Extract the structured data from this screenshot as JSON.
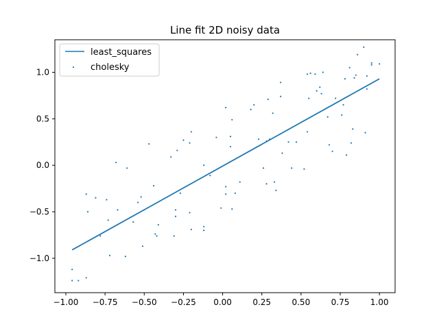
{
  "chart_data": {
    "type": "scatter",
    "title": "Line fit 2D noisy data",
    "xlabel": "",
    "ylabel": "",
    "xlim": [
      -1.07,
      1.1
    ],
    "ylim": [
      -1.37,
      1.35
    ],
    "x_ticks": [
      -1.0,
      -0.75,
      -0.5,
      -0.25,
      0.0,
      0.25,
      0.5,
      0.75,
      1.0
    ],
    "x_tick_labels": [
      "−1.00",
      "−0.75",
      "−0.50",
      "−0.25",
      "0.00",
      "0.25",
      "0.50",
      "0.75",
      "1.00"
    ],
    "y_ticks": [
      -1.0,
      -0.5,
      0.0,
      0.5,
      1.0
    ],
    "y_tick_labels": [
      "−1.0",
      "−0.5",
      "0.0",
      "0.5",
      "1.0"
    ],
    "grid": false,
    "legend_position": "upper-left",
    "legend": [
      "least_squares",
      "cholesky"
    ],
    "series": [
      {
        "name": "least_squares",
        "kind": "line",
        "color": "#1f77b4",
        "x": [
          -0.96,
          1.0
        ],
        "y": [
          -0.91,
          0.93
        ]
      },
      {
        "name": "cholesky",
        "kind": "scatter",
        "color": "#1f77b4",
        "points": [
          [
            -0.96,
            -1.24
          ],
          [
            -0.96,
            -1.12
          ],
          [
            -0.92,
            -1.24
          ],
          [
            -0.87,
            -1.21
          ],
          [
            -0.87,
            -0.31
          ],
          [
            -0.86,
            -0.5
          ],
          [
            -0.81,
            -0.35
          ],
          [
            -0.78,
            -0.76
          ],
          [
            -0.74,
            -0.37
          ],
          [
            -0.73,
            -0.59
          ],
          [
            -0.72,
            -0.97
          ],
          [
            -0.68,
            0.03
          ],
          [
            -0.67,
            -0.48
          ],
          [
            -0.62,
            -0.98
          ],
          [
            -0.61,
            -0.03
          ],
          [
            -0.57,
            -0.61
          ],
          [
            -0.54,
            -0.4
          ],
          [
            -0.52,
            -0.34
          ],
          [
            -0.51,
            -0.87
          ],
          [
            -0.47,
            0.23
          ],
          [
            -0.44,
            -0.22
          ],
          [
            -0.43,
            -0.74
          ],
          [
            -0.42,
            -0.76
          ],
          [
            -0.41,
            -0.64
          ],
          [
            -0.33,
            0.09
          ],
          [
            -0.31,
            -0.76
          ],
          [
            -0.3,
            -0.48
          ],
          [
            -0.3,
            -0.55
          ],
          [
            -0.29,
            0.16
          ],
          [
            -0.27,
            -0.3
          ],
          [
            -0.25,
            0.27
          ],
          [
            -0.21,
            -0.51
          ],
          [
            -0.2,
            0.36
          ],
          [
            -0.21,
            0.24
          ],
          [
            -0.2,
            -0.69
          ],
          [
            -0.12,
            0.0
          ],
          [
            -0.12,
            -0.66
          ],
          [
            -0.12,
            -0.7
          ],
          [
            -0.08,
            -0.11
          ],
          [
            -0.04,
            0.3
          ],
          [
            -0.01,
            -0.46
          ],
          [
            0.02,
            -0.23
          ],
          [
            0.02,
            0.62
          ],
          [
            0.02,
            -0.31
          ],
          [
            0.05,
            0.2
          ],
          [
            0.05,
            0.31
          ],
          [
            0.06,
            -0.47
          ],
          [
            0.06,
            0.49
          ],
          [
            0.08,
            -0.3
          ],
          [
            0.11,
            -0.18
          ],
          [
            0.18,
            0.6
          ],
          [
            0.2,
            0.65
          ],
          [
            0.23,
            0.28
          ],
          [
            0.26,
            -0.03
          ],
          [
            0.28,
            0.26
          ],
          [
            0.28,
            -0.2
          ],
          [
            0.29,
            0.71
          ],
          [
            0.3,
            0.28
          ],
          [
            0.32,
            0.56
          ],
          [
            0.33,
            -0.18
          ],
          [
            0.34,
            -0.27
          ],
          [
            0.37,
            0.74
          ],
          [
            0.37,
            0.89
          ],
          [
            0.38,
            0.13
          ],
          [
            0.42,
            0.25
          ],
          [
            0.44,
            -0.03
          ],
          [
            0.47,
            0.25
          ],
          [
            0.52,
            -0.04
          ],
          [
            0.54,
            0.36
          ],
          [
            0.54,
            0.98
          ],
          [
            0.55,
            0.72
          ],
          [
            0.56,
            0.99
          ],
          [
            0.59,
            0.98
          ],
          [
            0.6,
            0.8
          ],
          [
            0.62,
            0.84
          ],
          [
            0.63,
            0.77
          ],
          [
            0.64,
            1.0
          ],
          [
            0.67,
            0.52
          ],
          [
            0.68,
            0.22
          ],
          [
            0.7,
            0.15
          ],
          [
            0.72,
            0.72
          ],
          [
            0.76,
            0.54
          ],
          [
            0.77,
            0.65
          ],
          [
            0.78,
            0.93
          ],
          [
            0.79,
            0.11
          ],
          [
            0.81,
            1.05
          ],
          [
            0.82,
            0.24
          ],
          [
            0.83,
            0.39
          ],
          [
            0.84,
            0.94
          ],
          [
            0.85,
            0.97
          ],
          [
            0.86,
            1.19
          ],
          [
            0.9,
            1.27
          ],
          [
            0.91,
            0.35
          ],
          [
            0.92,
            0.82
          ],
          [
            0.95,
            1.1
          ],
          [
            0.92,
            0.96
          ],
          [
            0.95,
            1.08
          ],
          [
            1.0,
            1.09
          ]
        ]
      }
    ]
  }
}
